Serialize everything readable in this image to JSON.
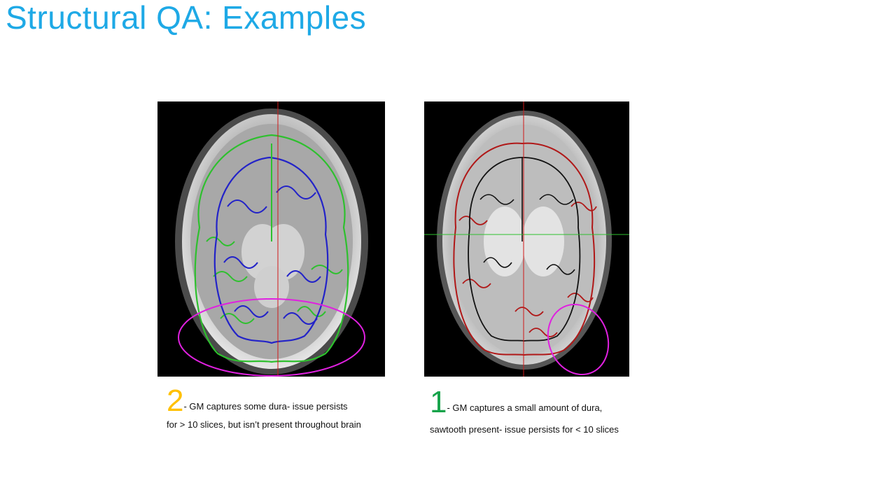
{
  "slide": {
    "title": "Structural QA: Examples"
  },
  "examples": [
    {
      "score": "2",
      "score_color": "#ffc000",
      "line1": "- GM captures some dura- issue persists",
      "line2": "for > 10 slices, but isn’t present throughout brain",
      "contour_colors": [
        "#2ec02e",
        "#2323c8"
      ],
      "highlight_color": "#e020e0"
    },
    {
      "score": "1",
      "score_color": "#16a34a",
      "line1": "- GM captures a small amount of dura,",
      "line2": "sawtooth present- issue persists for < 10 slices",
      "contour_colors": [
        "#b01818",
        "#111111"
      ],
      "highlight_color": "#e020e0"
    }
  ]
}
